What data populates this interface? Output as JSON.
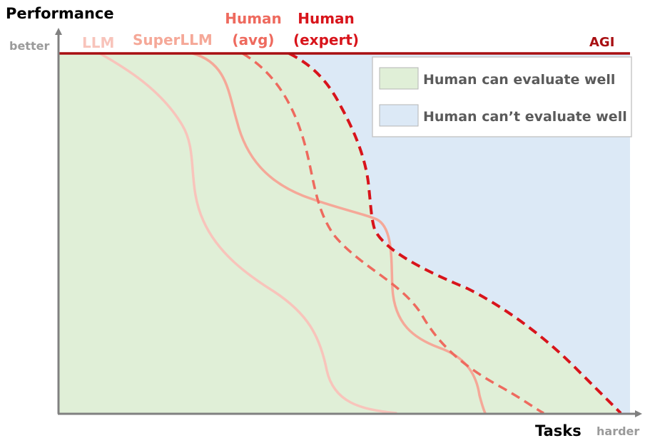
{
  "axes": {
    "y_title": "Performance",
    "y_end_label": "better",
    "x_title": "Tasks",
    "x_end_label": "harder"
  },
  "curves": {
    "llm": "LLM",
    "superllm": "SuperLLM",
    "human_avg_line1": "Human",
    "human_avg_line2": "(avg)",
    "human_expert_line1": "Human",
    "human_expert_line2": "(expert)",
    "agi": "AGI"
  },
  "legend": {
    "can_evaluate": "Human can evaluate well",
    "cannot_evaluate": "Human can’t evaluate well"
  },
  "colors": {
    "llm": "#f8c4bb",
    "superllm": "#f5a898",
    "human_avg": "#ee6a5e",
    "human_expert": "#d8141b",
    "agi": "#a80f12",
    "region_can": "#e0efd7",
    "region_cannot": "#dce9f6",
    "axis": "#808080",
    "legend_text": "#5a5a5a",
    "end_label": "#9a9a9a"
  }
}
